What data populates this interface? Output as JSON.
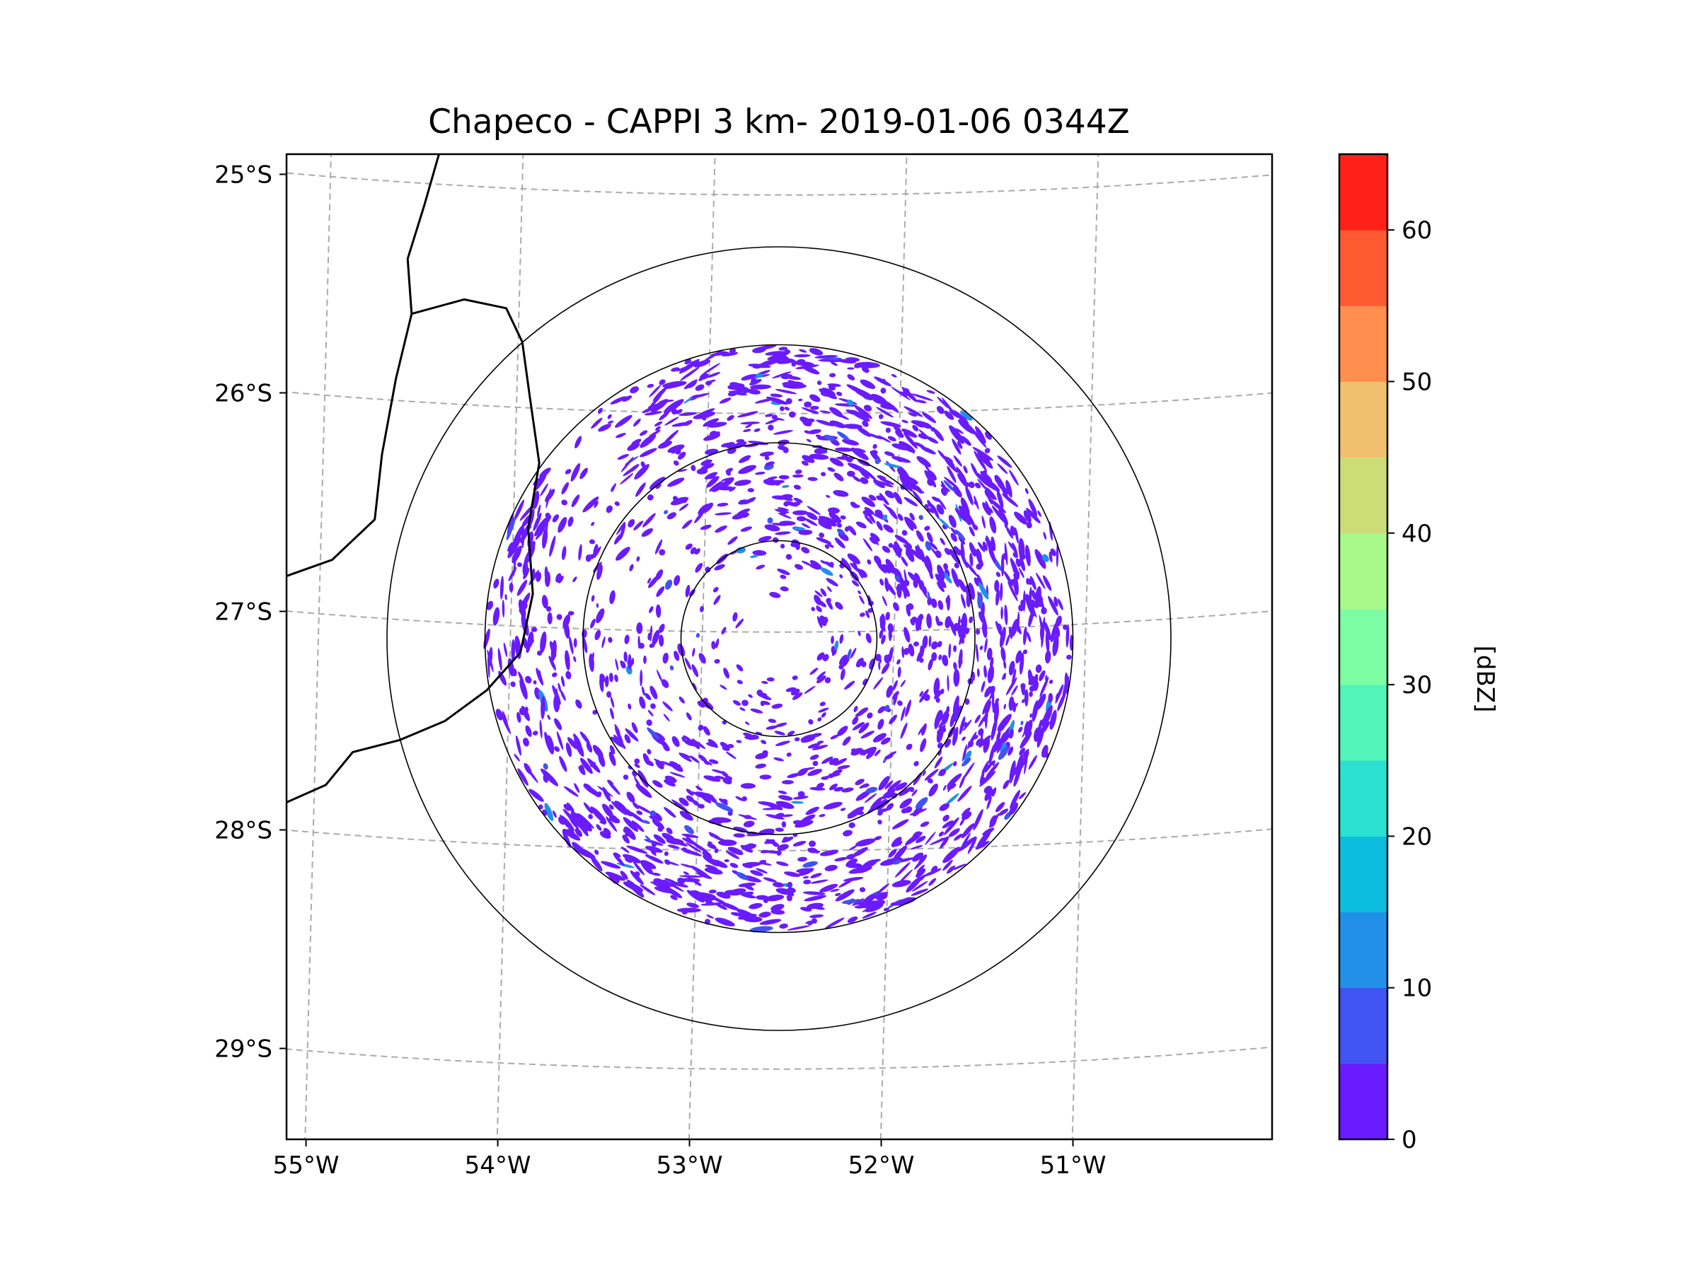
{
  "chart_data": {
    "type": "heatmap",
    "title": "Chapeco - CAPPI 3 km- 2019-01-06 0344Z",
    "xlabel": "",
    "ylabel": "",
    "xlim": [
      -55.2,
      -50.05
    ],
    "ylim": [
      -29.3,
      -24.8
    ],
    "x_ticks": [
      -55,
      -54,
      -53,
      -52,
      -51
    ],
    "x_tick_labels": [
      "55°W",
      "54°W",
      "53°W",
      "52°W",
      "51°W"
    ],
    "y_ticks": [
      -25,
      -26,
      -27,
      -28,
      -29
    ],
    "y_tick_labels": [
      "25°S",
      "26°S",
      "27°S",
      "28°S",
      "29°S"
    ],
    "grid": true,
    "radar_center": {
      "lon": -52.6,
      "lat": -27.03
    },
    "range_rings_km": [
      50,
      100,
      150,
      200
    ],
    "echo_radius_km": 150,
    "colorbar": {
      "label": "[dBZ]",
      "min": 0,
      "max": 65,
      "step": 5,
      "tick_values": [
        0,
        10,
        20,
        30,
        40,
        50,
        60
      ],
      "tick_labels": [
        "0",
        "10",
        "20",
        "30",
        "40",
        "50",
        "60"
      ],
      "colors": [
        "#6a1bff",
        "#4153f2",
        "#2290e8",
        "#0cbde0",
        "#2ce1d2",
        "#51f4b9",
        "#7dfda3",
        "#a8f98a",
        "#ccdd78",
        "#f0bf70",
        "#ff8e4f",
        "#ff5a32",
        "#ff2119"
      ]
    },
    "echo_dominant_range_dbz": [
      0,
      5
    ],
    "echo_color": "#6a1bff",
    "borders": [
      [
        [
          -54.42,
          -24.8
        ],
        [
          -54.52,
          -25.1
        ],
        [
          -54.6,
          -25.35
        ],
        [
          -54.56,
          -25.6
        ],
        [
          -54.62,
          -25.9
        ],
        [
          -54.68,
          -26.25
        ],
        [
          -54.72,
          -26.55
        ],
        [
          -54.95,
          -26.75
        ],
        [
          -55.2,
          -26.85
        ]
      ],
      [
        [
          -54.56,
          -25.6
        ],
        [
          -54.3,
          -25.52
        ],
        [
          -54.08,
          -25.55
        ],
        [
          -53.98,
          -25.7
        ],
        [
          -53.92,
          -25.95
        ],
        [
          -53.86,
          -26.25
        ],
        [
          -53.92,
          -26.55
        ],
        [
          -53.9,
          -26.85
        ],
        [
          -53.96,
          -27.12
        ],
        [
          -54.12,
          -27.3
        ],
        [
          -54.32,
          -27.45
        ],
        [
          -54.55,
          -27.55
        ],
        [
          -54.8,
          -27.62
        ],
        [
          -54.95,
          -27.78
        ],
        [
          -55.2,
          -27.9
        ]
      ]
    ]
  }
}
